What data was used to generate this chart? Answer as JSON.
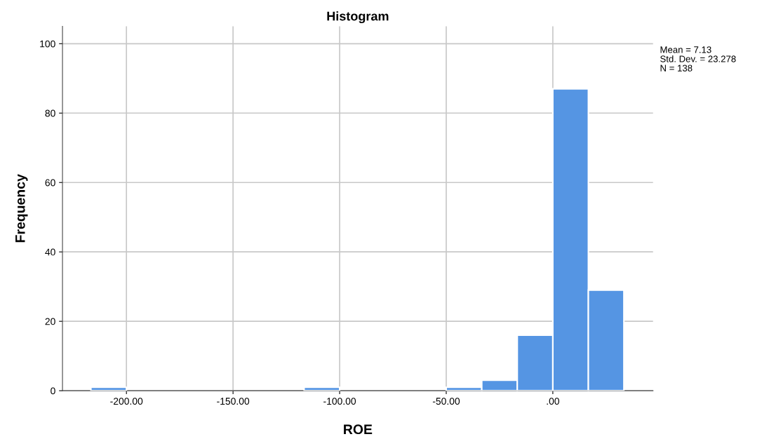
{
  "chart_data": {
    "type": "histogram",
    "title": "Histogram",
    "xlabel": "ROE",
    "ylabel": "Frequency",
    "bins": [
      -216.67,
      -200,
      -183.33,
      -166.67,
      -150,
      -133.33,
      -116.67,
      -100,
      -83.33,
      -66.67,
      -50,
      -33.33,
      -16.67,
      0,
      16.67,
      33.33
    ],
    "values": [
      1,
      0,
      0,
      0,
      0,
      0,
      1,
      0,
      0,
      0,
      1,
      3,
      16,
      87,
      29
    ],
    "color": "#5595e3",
    "xlim": [
      -230,
      47
    ],
    "xticks": [
      {
        "value": -200,
        "label": "-200.00"
      },
      {
        "value": -150,
        "label": "-150.00"
      },
      {
        "value": -100,
        "label": "-100.00"
      },
      {
        "value": -50,
        "label": "-50.00"
      },
      {
        "value": 0,
        "label": ".00"
      }
    ],
    "ylim": [
      0,
      105
    ],
    "yticks": [
      0,
      20,
      40,
      60,
      80,
      100
    ],
    "grid": true,
    "legend": false,
    "annotations": [
      "Mean = 7.13",
      "Std. Dev. = 23.278",
      "N = 138"
    ]
  }
}
